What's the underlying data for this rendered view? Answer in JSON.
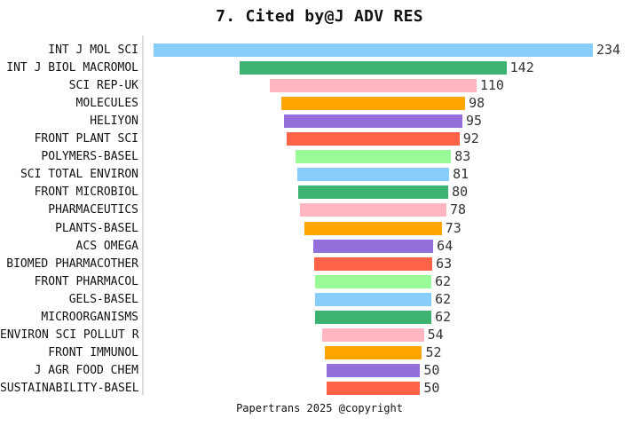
{
  "chart_data": {
    "type": "bar",
    "orientation": "horizontal",
    "style": "centered-funnel",
    "title": "7. Cited by@J ADV RES",
    "footer": "Papertrans 2025 @copyright",
    "categories": [
      "INT J MOL SCI",
      "INT J BIOL MACROMOL",
      "SCI REP-UK",
      "MOLECULES",
      "HELIYON",
      "FRONT PLANT SCI",
      "POLYMERS-BASEL",
      "SCI TOTAL ENVIRON",
      "FRONT MICROBIOL",
      "PHARMACEUTICS",
      "PLANTS-BASEL",
      "ACS OMEGA",
      "BIOMED PHARMACOTHER",
      "FRONT PHARMACOL",
      "GELS-BASEL",
      "MICROORGANISMS",
      "ENVIRON SCI POLLUT R",
      "FRONT IMMUNOL",
      "J AGR FOOD CHEM",
      "SUSTAINABILITY-BASEL"
    ],
    "values": [
      234,
      142,
      110,
      98,
      95,
      92,
      83,
      81,
      80,
      78,
      73,
      64,
      63,
      62,
      62,
      62,
      54,
      52,
      50,
      50
    ],
    "value_labels_shown": true,
    "bar_color_cycle": [
      "#87CEFA",
      "#3CB371",
      "#FFB6C1",
      "#FFA500",
      "#9370DB",
      "#FF6347",
      "#98FB98"
    ],
    "axis_line_color": "#DCDCDC",
    "label_color": "#111111",
    "value_label_color": "#333333",
    "background_color": "#FFFFFF",
    "grid": false,
    "legend": false,
    "xlim": [
      0,
      250
    ]
  }
}
